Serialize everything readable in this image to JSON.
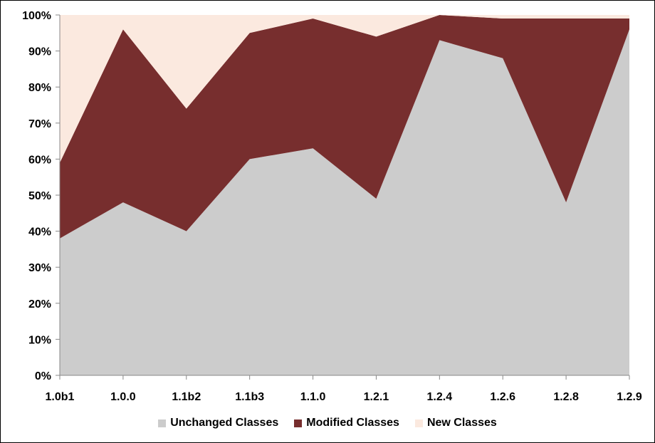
{
  "chart_data": {
    "type": "area",
    "stacked": true,
    "percent": true,
    "title": "",
    "xlabel": "",
    "ylabel": "",
    "categories": [
      "1.0b1",
      "1.0.0",
      "1.1b2",
      "1.1b3",
      "1.1.0",
      "1.2.1",
      "1.2.4",
      "1.2.6",
      "1.2.8",
      "1.2.9"
    ],
    "ylim": [
      0,
      100
    ],
    "yticks": [
      "0%",
      "10%",
      "20%",
      "30%",
      "40%",
      "50%",
      "60%",
      "70%",
      "80%",
      "90%",
      "100%"
    ],
    "grid": false,
    "legend_position": "bottom",
    "series": [
      {
        "name": "Unchanged Classes",
        "color": "#cccccc",
        "values": [
          38,
          48,
          40,
          60,
          63,
          49,
          93,
          88,
          48,
          96
        ]
      },
      {
        "name": "Modified Classes",
        "color": "#772e2e",
        "values": [
          21,
          48,
          34,
          35,
          36,
          45,
          7,
          11,
          51,
          3
        ]
      },
      {
        "name": "New Classes",
        "color": "#fbe9df",
        "values": [
          41,
          4,
          26,
          5,
          1,
          6,
          0,
          1,
          1,
          1
        ]
      }
    ]
  }
}
